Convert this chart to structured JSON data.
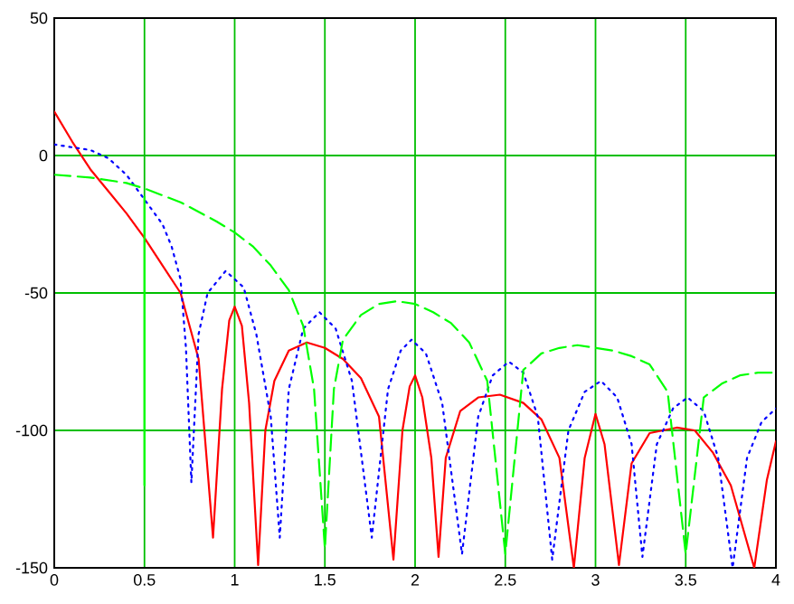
{
  "chart_data": {
    "type": "line",
    "xlim": [
      0,
      4
    ],
    "ylim": [
      -150,
      50
    ],
    "xticks": [
      0,
      0.5,
      1,
      1.5,
      2,
      2.5,
      3,
      3.5,
      4
    ],
    "yticks": [
      -150,
      -100,
      -50,
      0,
      50
    ],
    "grid": true,
    "marker": "none",
    "series": [
      {
        "color": "#ff0000",
        "line_style": "solid",
        "x": [
          0,
          0.1,
          0.2,
          0.3,
          0.4,
          0.5,
          0.6,
          0.7,
          0.8,
          0.88,
          0.93,
          0.97,
          1.0,
          1.04,
          1.08,
          1.13,
          1.17,
          1.22,
          1.3,
          1.4,
          1.5,
          1.6,
          1.7,
          1.8,
          1.88,
          1.93,
          1.97,
          2.0,
          2.04,
          2.09,
          2.13,
          2.17,
          2.25,
          2.35,
          2.47,
          2.6,
          2.7,
          2.8,
          2.88,
          2.94,
          3.0,
          3.05,
          3.13,
          3.2,
          3.3,
          3.45,
          3.55,
          3.65,
          3.75,
          3.88,
          3.95,
          4
        ],
        "values": [
          16,
          5,
          -5,
          -13,
          -21,
          -30,
          -40,
          -50,
          -74,
          -139,
          -85,
          -60,
          -55,
          -62,
          -90,
          -149,
          -100,
          -82,
          -71,
          -68,
          -70,
          -74,
          -81,
          -95,
          -147,
          -100,
          -84,
          -80,
          -88,
          -110,
          -146,
          -110,
          -93,
          -88,
          -87,
          -90,
          -96,
          -110,
          -150,
          -110,
          -94,
          -105,
          -149,
          -112,
          -101,
          -99,
          -100,
          -108,
          -120,
          -150,
          -118,
          -104
        ]
      },
      {
        "color": "#0000ff",
        "line_style": "dotted",
        "x": [
          0,
          0.1,
          0.2,
          0.3,
          0.4,
          0.5,
          0.6,
          0.65,
          0.7,
          0.73,
          0.76,
          0.8,
          0.85,
          0.95,
          1.05,
          1.12,
          1.2,
          1.25,
          1.3,
          1.38,
          1.47,
          1.56,
          1.65,
          1.76,
          1.85,
          1.92,
          1.98,
          2.06,
          2.15,
          2.26,
          2.35,
          2.43,
          2.52,
          2.6,
          2.68,
          2.76,
          2.85,
          2.94,
          3.03,
          3.12,
          3.2,
          3.26,
          3.34,
          3.43,
          3.51,
          3.6,
          3.68,
          3.76,
          3.84,
          3.92,
          4
        ],
        "values": [
          4,
          3,
          2,
          -1,
          -7,
          -16,
          -25,
          -33,
          -45,
          -70,
          -119,
          -65,
          -50,
          -42,
          -48,
          -65,
          -95,
          -139,
          -85,
          -63,
          -57,
          -63,
          -82,
          -139,
          -85,
          -71,
          -67,
          -72,
          -90,
          -145,
          -95,
          -80,
          -75,
          -79,
          -95,
          -147,
          -100,
          -86,
          -82,
          -88,
          -105,
          -146,
          -105,
          -92,
          -88,
          -93,
          -110,
          -150,
          -110,
          -97,
          -92
        ]
      },
      {
        "color": "#00ff00",
        "line_style": "dashed",
        "x": [
          0,
          0.2,
          0.4,
          0.5,
          0.7,
          0.9,
          1.0,
          1.1,
          1.2,
          1.3,
          1.38,
          1.44,
          1.5,
          1.55,
          1.6,
          1.7,
          1.8,
          1.9,
          2.0,
          2.1,
          2.2,
          2.3,
          2.4,
          2.5,
          2.6,
          2.7,
          2.8,
          2.9,
          3.0,
          3.1,
          3.2,
          3.3,
          3.4,
          3.5,
          3.6,
          3.7,
          3.8,
          3.9,
          4
        ],
        "values": [
          -7,
          -8,
          -10,
          -12,
          -17,
          -24,
          -28,
          -33,
          -40,
          -49,
          -62,
          -85,
          -143,
          -85,
          -67,
          -58,
          -54,
          -53,
          -54,
          -57,
          -61,
          -68,
          -82,
          -145,
          -78,
          -72,
          -70,
          -69,
          -70,
          -71,
          -73,
          -76,
          -86,
          -145,
          -88,
          -83,
          -80,
          -79,
          -79
        ]
      },
      {
        "color": "#00ff00",
        "line_style": "solid",
        "x": [
          0.5,
          0.5
        ],
        "values": [
          -15,
          -120
        ]
      }
    ]
  }
}
